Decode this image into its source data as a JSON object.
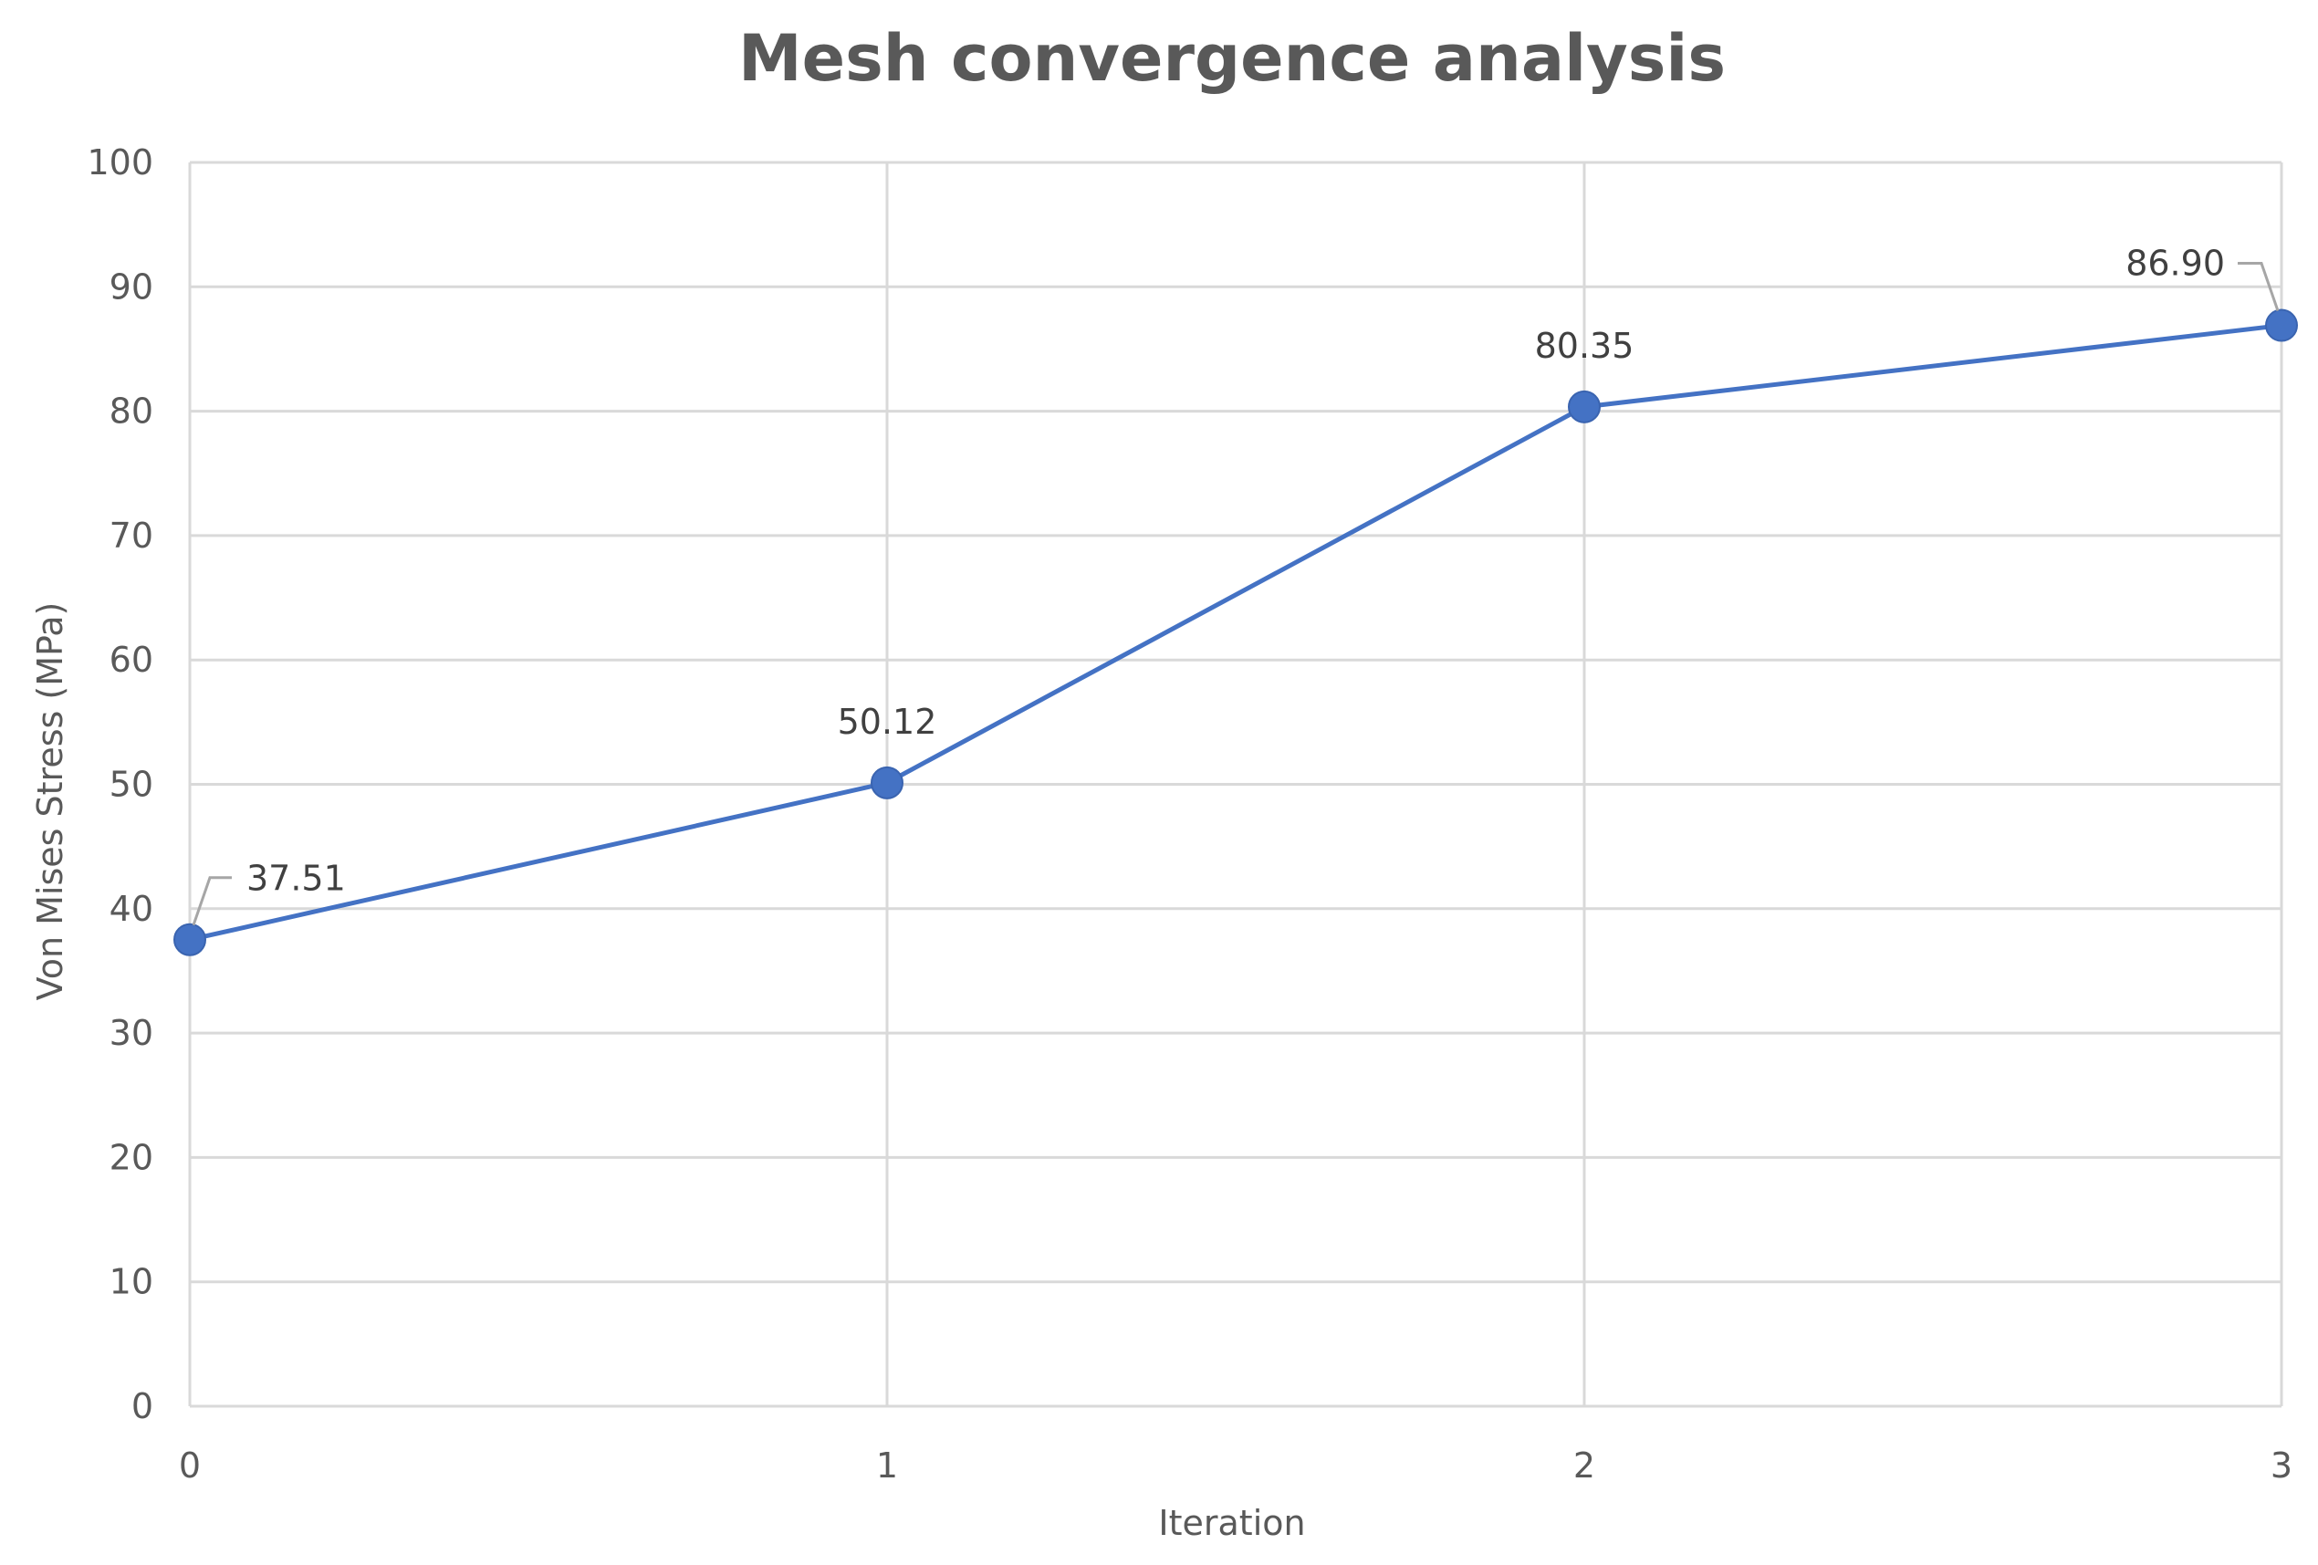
{
  "chart_data": {
    "type": "line",
    "title": "Mesh convergence analysis",
    "xlabel": "Iteration",
    "ylabel": "Von Mises Stress (MPa)",
    "x": [
      0,
      1,
      2,
      3
    ],
    "x_tick_labels": [
      "0",
      "1",
      "2",
      "3"
    ],
    "xlim": [
      0,
      3
    ],
    "ylim": [
      0,
      100
    ],
    "y_ticks": [
      0,
      10,
      20,
      30,
      40,
      50,
      60,
      70,
      80,
      90,
      100
    ],
    "grid": true,
    "legend": "none",
    "series": [
      {
        "values": [
          37.51,
          50.12,
          80.35,
          86.9
        ],
        "data_labels": [
          "37.51",
          "50.12",
          "80.35",
          "86.90"
        ],
        "color": "#4472c4"
      }
    ]
  }
}
